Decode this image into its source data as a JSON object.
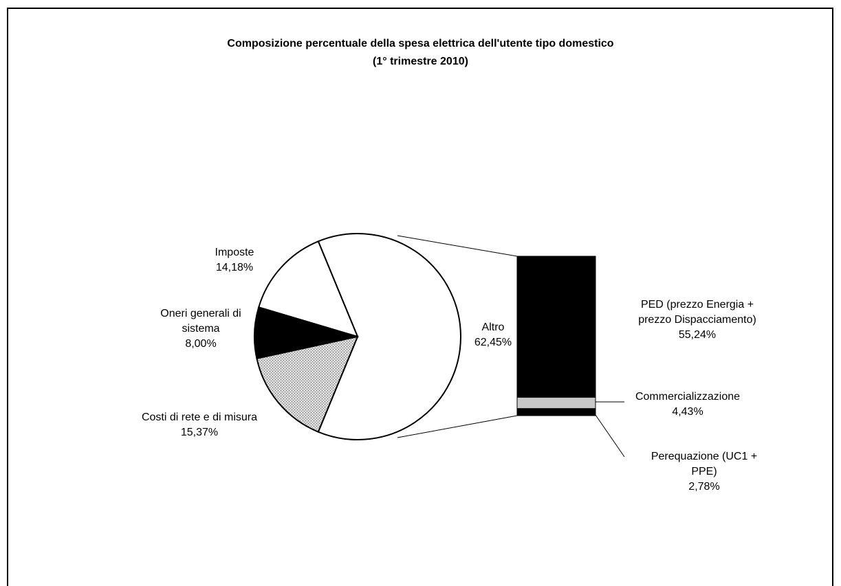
{
  "chart_data": {
    "type": "pie",
    "title": "Composizione percentuale della spesa elettrica dell'utente tipo domestico",
    "subtitle": "(1° trimestre 2010)",
    "categories": [
      "Altro",
      "Imposte",
      "Oneri generali di sistema",
      "Costi di rete e di misura"
    ],
    "values": [
      62.45,
      14.18,
      8.0,
      15.37
    ],
    "value_labels": [
      "62,45%",
      "14,18%",
      "8,00%",
      "15,37%"
    ],
    "colors": [
      "#ffffff",
      "#ffffff",
      "#000000",
      "#b5b5b5"
    ],
    "breakdown": {
      "categories": [
        "PED (prezzo Energia + prezzo Dispacciamento)",
        "Commercializzazione",
        "Perequazione (UC1 + PPE)"
      ],
      "values": [
        55.24,
        4.43,
        2.78
      ],
      "value_labels": [
        "55,24%",
        "4,43%",
        "2,78%"
      ],
      "colors": [
        "#000000",
        "#c8c8c8",
        "#000000"
      ]
    }
  }
}
